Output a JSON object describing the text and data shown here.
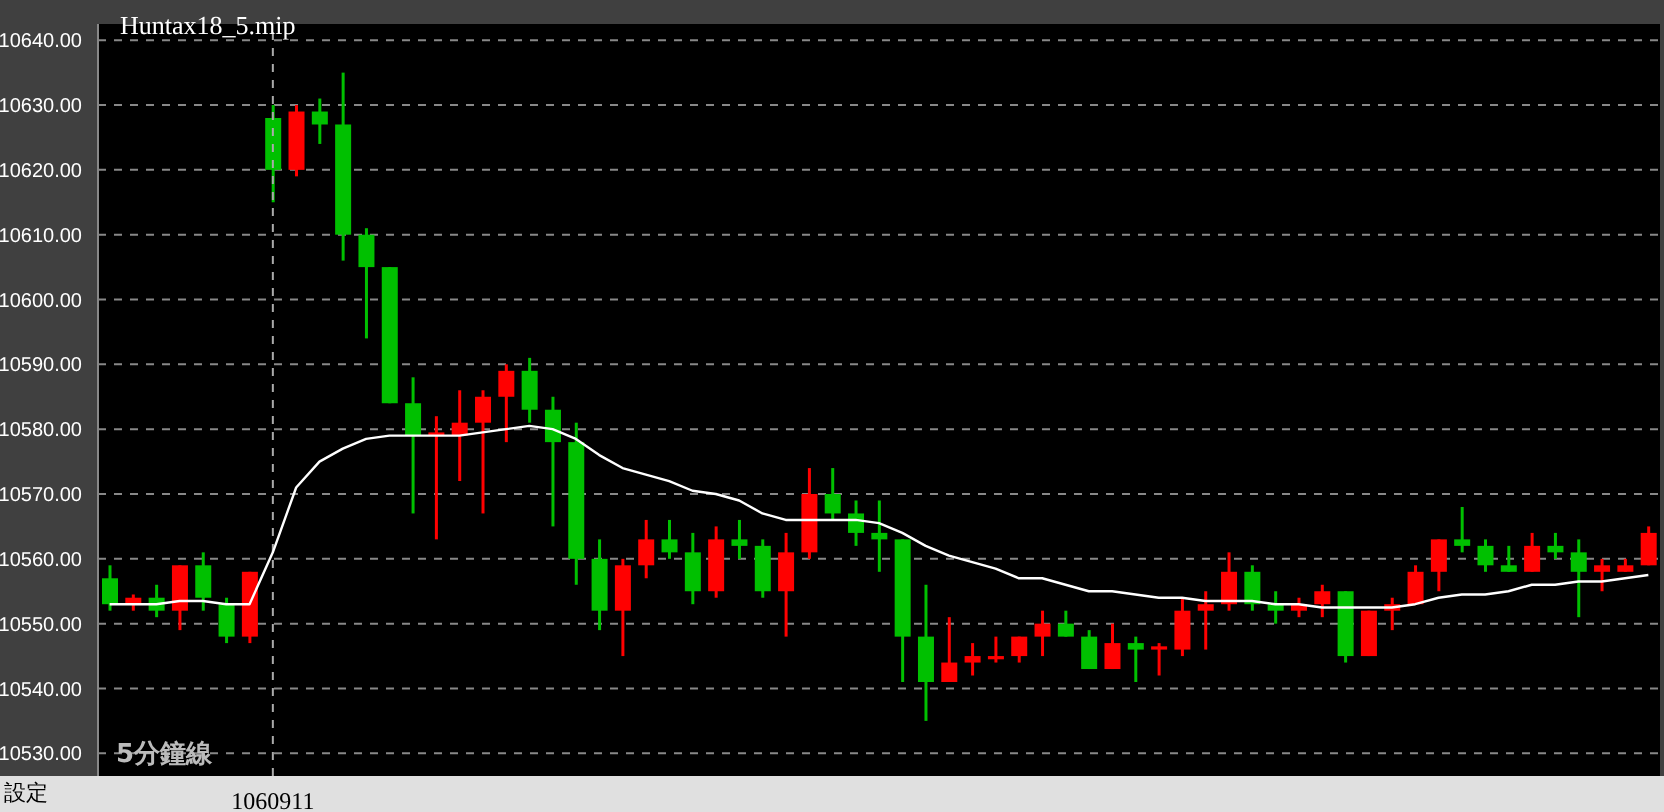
{
  "chart_data": {
    "type": "candlestick",
    "categories": [
      null,
      null,
      null,
      null,
      null,
      null,
      null,
      "1060911",
      null,
      null,
      null,
      null,
      null,
      null,
      null,
      null,
      null,
      null,
      null,
      null,
      null,
      null,
      null,
      null,
      null,
      null,
      null,
      null,
      null,
      null,
      null,
      null,
      null,
      null,
      null,
      null,
      null,
      null,
      null,
      null,
      null,
      null,
      null,
      null,
      null,
      null,
      null,
      null,
      null,
      null,
      null,
      null,
      null,
      null,
      null,
      null,
      null,
      null,
      null,
      null,
      null,
      null,
      null,
      null,
      null,
      null,
      null
    ],
    "series": [
      {
        "ohlc": [
          [
            10557,
            10559,
            10552,
            10553
          ],
          [
            10553,
            10554.5,
            10552,
            10554
          ],
          [
            10554,
            10556,
            10551,
            10552
          ],
          [
            10552,
            10559,
            10549,
            10559
          ],
          [
            10559,
            10561,
            10552,
            10554
          ],
          [
            10553,
            10554,
            10547,
            10548
          ],
          [
            10548,
            10558,
            10547,
            10558
          ],
          [
            10628,
            10630,
            10615,
            10620
          ],
          [
            10620,
            10630,
            10619,
            10629
          ],
          [
            10629,
            10631,
            10624,
            10627
          ],
          [
            10627,
            10635,
            10606,
            10610
          ],
          [
            10610,
            10611,
            10594,
            10605
          ],
          [
            10605,
            10605,
            10584,
            10584
          ],
          [
            10584,
            10588,
            10567,
            10579
          ],
          [
            10579,
            10582,
            10563,
            10579.5
          ],
          [
            10579,
            10586,
            10572,
            10581
          ],
          [
            10581,
            10586,
            10567,
            10585
          ],
          [
            10585,
            10590,
            10578,
            10589
          ],
          [
            10589,
            10591,
            10581,
            10583
          ],
          [
            10583,
            10585,
            10565,
            10578
          ],
          [
            10578,
            10581,
            10556,
            10560
          ],
          [
            10560,
            10563,
            10549,
            10552
          ],
          [
            10552,
            10560,
            10545,
            10559
          ],
          [
            10559,
            10566,
            10557,
            10563
          ],
          [
            10563,
            10566,
            10560,
            10561
          ],
          [
            10561,
            10564,
            10553,
            10555
          ],
          [
            10555,
            10565,
            10554,
            10563
          ],
          [
            10563,
            10566,
            10560,
            10562
          ],
          [
            10562,
            10563,
            10554,
            10555
          ],
          [
            10555,
            10564,
            10548,
            10561
          ],
          [
            10561,
            10574,
            10560,
            10570
          ],
          [
            10570,
            10574,
            10566,
            10567
          ],
          [
            10567,
            10569,
            10562,
            10564
          ],
          [
            10564,
            10569,
            10558,
            10563
          ],
          [
            10563,
            10563,
            10541,
            10548
          ],
          [
            10548,
            10556,
            10535,
            10541
          ],
          [
            10541,
            10551,
            10541,
            10544
          ],
          [
            10544,
            10547,
            10542,
            10545
          ],
          [
            10544.5,
            10548,
            10544,
            10545
          ],
          [
            10545,
            10548,
            10544,
            10548
          ],
          [
            10548,
            10552,
            10545,
            10550
          ],
          [
            10550,
            10552,
            10548,
            10548
          ],
          [
            10548,
            10549,
            10543,
            10543
          ],
          [
            10543,
            10550,
            10543,
            10547
          ],
          [
            10547,
            10548,
            10541,
            10546
          ],
          [
            10546,
            10547,
            10542,
            10546.5
          ],
          [
            10546,
            10554,
            10545,
            10552
          ],
          [
            10552,
            10555,
            10546,
            10553
          ],
          [
            10553,
            10561,
            10552,
            10558
          ],
          [
            10558,
            10559,
            10552,
            10553
          ],
          [
            10553,
            10555,
            10550,
            10552
          ],
          [
            10552,
            10554,
            10551,
            10553
          ],
          [
            10553,
            10556,
            10551,
            10555
          ],
          [
            10555,
            10555,
            10544,
            10545
          ],
          [
            10545,
            10552,
            10545,
            10552
          ],
          [
            10552,
            10554,
            10549,
            10553
          ],
          [
            10553,
            10559,
            10553,
            10558
          ],
          [
            10558,
            10563,
            10555,
            10563
          ],
          [
            10563,
            10568,
            10561,
            10562
          ],
          [
            10562,
            10563,
            10558,
            10559
          ],
          [
            10559,
            10562,
            10558,
            10558
          ],
          [
            10558,
            10564,
            10558,
            10562
          ],
          [
            10562,
            10564,
            10560,
            10561
          ],
          [
            10561,
            10563,
            10551,
            10558
          ],
          [
            10558,
            10560,
            10555,
            10559
          ],
          [
            10558,
            10560,
            10558,
            10559
          ],
          [
            10559,
            10565,
            10559,
            10564
          ]
        ],
        "colors": [
          "#00c000",
          "#ff0000",
          "#00c000",
          "#ff0000",
          "#00c000",
          "#00c000",
          "#ff0000",
          "#00c000",
          "#ff0000",
          "#00c000",
          "#00c000",
          "#00c000",
          "#00c000",
          "#00c000",
          "#ff0000",
          "#ff0000",
          "#ff0000",
          "#ff0000",
          "#00c000",
          "#00c000",
          "#00c000",
          "#00c000",
          "#ff0000",
          "#ff0000",
          "#00c000",
          "#00c000",
          "#ff0000",
          "#00c000",
          "#00c000",
          "#ff0000",
          "#ff0000",
          "#00c000",
          "#00c000",
          "#00c000",
          "#00c000",
          "#00c000",
          "#ff0000",
          "#ff0000",
          "#ff0000",
          "#ff0000",
          "#ff0000",
          "#00c000",
          "#00c000",
          "#ff0000",
          "#00c000",
          "#ff0000",
          "#ff0000",
          "#ff0000",
          "#ff0000",
          "#00c000",
          "#00c000",
          "#ff0000",
          "#ff0000",
          "#00c000",
          "#ff0000",
          "#ff0000",
          "#ff0000",
          "#ff0000",
          "#00c000",
          "#00c000",
          "#00c000",
          "#ff0000",
          "#00c000",
          "#00c000",
          "#ff0000",
          "#ff0000",
          "#ff0000"
        ]
      },
      {
        "type": "line",
        "color": "#ffffff",
        "values": [
          10553,
          10553,
          10553,
          10553.5,
          10553.5,
          10553,
          10553,
          10561,
          10571,
          10575,
          10577,
          10578.5,
          10579,
          10579,
          10579,
          10579,
          10579.5,
          10580,
          10580.5,
          10580,
          10578.5,
          10576,
          10574,
          10573,
          10572,
          10570.5,
          10570,
          10569,
          10567,
          10566,
          10566,
          10566,
          10566,
          10565.5,
          10564,
          10562,
          10560.5,
          10559.5,
          10558.5,
          10557,
          10557,
          10556,
          10555,
          10555,
          10554.5,
          10554,
          10554,
          10553.5,
          10553.5,
          10553.5,
          10553,
          10553,
          10552.5,
          10552.5,
          10552.5,
          10552.5,
          10553,
          10554,
          10554.5,
          10554.5,
          10555,
          10556,
          10556,
          10556.5,
          10556.5,
          10557,
          10557.5
        ]
      }
    ],
    "ylim": [
      10526.5,
      10642.5
    ],
    "yticks": [
      {
        "value": 10530,
        "label": "10530.00"
      },
      {
        "value": 10540,
        "label": "10540.00"
      },
      {
        "value": 10550,
        "label": "10550.00"
      },
      {
        "value": 10560,
        "label": "10560.00"
      },
      {
        "value": 10570,
        "label": "10570.00"
      },
      {
        "value": 10580,
        "label": "10580.00"
      },
      {
        "value": 10590,
        "label": "10590.00"
      },
      {
        "value": 10600,
        "label": "10600.00"
      },
      {
        "value": 10610,
        "label": "10610.00"
      },
      {
        "value": 10620,
        "label": "10620.00"
      },
      {
        "value": 10630,
        "label": "10630.00"
      },
      {
        "value": 10640,
        "label": "10640.00"
      }
    ],
    "grid": "y",
    "ref_lines": [
      {
        "axis": "x",
        "value": "1060911",
        "line_style": "dashed"
      }
    ],
    "annotations": [
      "Huntax18_5.mip",
      "5分鐘線",
      "設定"
    ]
  }
}
